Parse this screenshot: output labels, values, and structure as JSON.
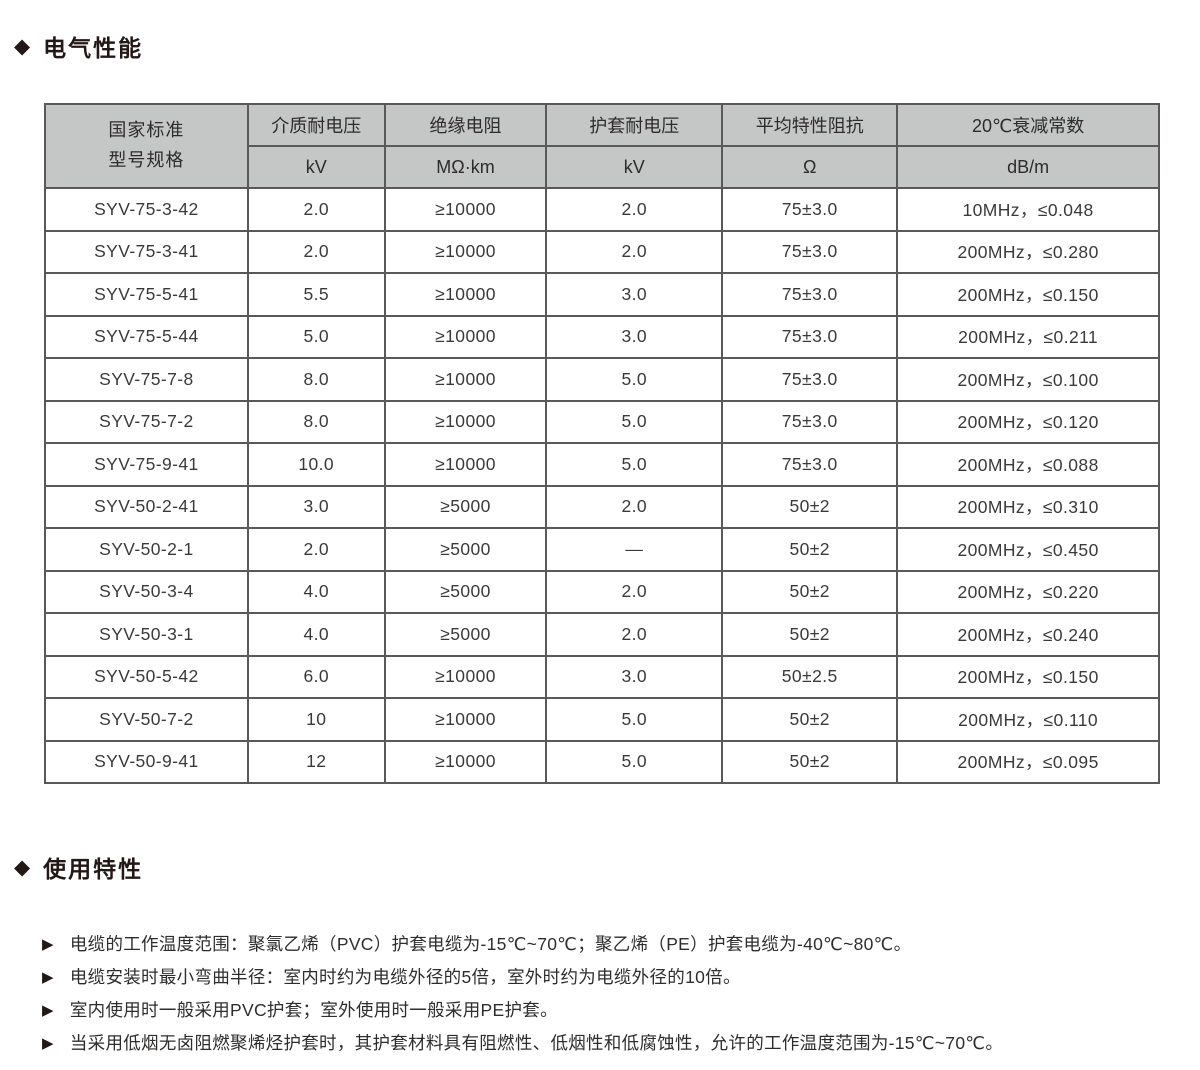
{
  "colors": {
    "header_bg": "#c5c6c6",
    "table_border": "#5a5858",
    "heading_text": "#231815",
    "body_text": "#3c3a39"
  },
  "electrical_section": {
    "bullet_icon": "diamond-icon",
    "title": "电气性能"
  },
  "table": {
    "header": {
      "col1_line1": "国家标准",
      "col1_line2": "型号规格",
      "columns": [
        {
          "name": "介质耐电压",
          "unit": "kV"
        },
        {
          "name": "绝缘电阻",
          "unit": "MΩ·km"
        },
        {
          "name": "护套耐电压",
          "unit": "kV"
        },
        {
          "name": "平均特性阻抗",
          "unit": "Ω"
        },
        {
          "name": "20℃衰减常数",
          "unit": "dB/m"
        }
      ]
    },
    "rows": [
      [
        "SYV-75-3-42",
        "2.0",
        "≥10000",
        "2.0",
        "75±3.0",
        "10MHz，≤0.048"
      ],
      [
        "SYV-75-3-41",
        "2.0",
        "≥10000",
        "2.0",
        "75±3.0",
        "200MHz，≤0.280"
      ],
      [
        "SYV-75-5-41",
        "5.5",
        "≥10000",
        "3.0",
        "75±3.0",
        "200MHz，≤0.150"
      ],
      [
        "SYV-75-5-44",
        "5.0",
        "≥10000",
        "3.0",
        "75±3.0",
        "200MHz，≤0.211"
      ],
      [
        "SYV-75-7-8",
        "8.0",
        "≥10000",
        "5.0",
        "75±3.0",
        "200MHz，≤0.100"
      ],
      [
        "SYV-75-7-2",
        "8.0",
        "≥10000",
        "5.0",
        "75±3.0",
        "200MHz，≤0.120"
      ],
      [
        "SYV-75-9-41",
        "10.0",
        "≥10000",
        "5.0",
        "75±3.0",
        "200MHz，≤0.088"
      ],
      [
        "SYV-50-2-41",
        "3.0",
        "≥5000",
        "2.0",
        "50±2",
        "200MHz，≤0.310"
      ],
      [
        "SYV-50-2-1",
        "2.0",
        "≥5000",
        "—",
        "50±2",
        "200MHz，≤0.450"
      ],
      [
        "SYV-50-3-4",
        "4.0",
        "≥5000",
        "2.0",
        "50±2",
        "200MHz，≤0.220"
      ],
      [
        "SYV-50-3-1",
        "4.0",
        "≥5000",
        "2.0",
        "50±2",
        "200MHz，≤0.240"
      ],
      [
        "SYV-50-5-42",
        "6.0",
        "≥10000",
        "3.0",
        "50±2.5",
        "200MHz，≤0.150"
      ],
      [
        "SYV-50-7-2",
        "10",
        "≥10000",
        "5.0",
        "50±2",
        "200MHz，≤0.110"
      ],
      [
        "SYV-50-9-41",
        "12",
        "≥10000",
        "5.0",
        "50±2",
        "200MHz，≤0.095"
      ]
    ]
  },
  "usage_section": {
    "bullet_icon": "triangle-icon",
    "title": "使用特性",
    "bullets": [
      "电缆的工作温度范围：聚氯乙烯（PVC）护套电缆为-15℃~70℃；聚乙烯（PE）护套电缆为-40℃~80℃。",
      "电缆安装时最小弯曲半径：室内时约为电缆外径的5倍，室外时约为电缆外径的10倍。",
      "室内使用时一般采用PVC护套；室外使用时一般采用PE护套。",
      "当采用低烟无卤阻燃聚烯烃护套时，其护套材料具有阻燃性、低烟性和低腐蚀性，允许的工作温度范围为-15℃~70℃。"
    ]
  }
}
